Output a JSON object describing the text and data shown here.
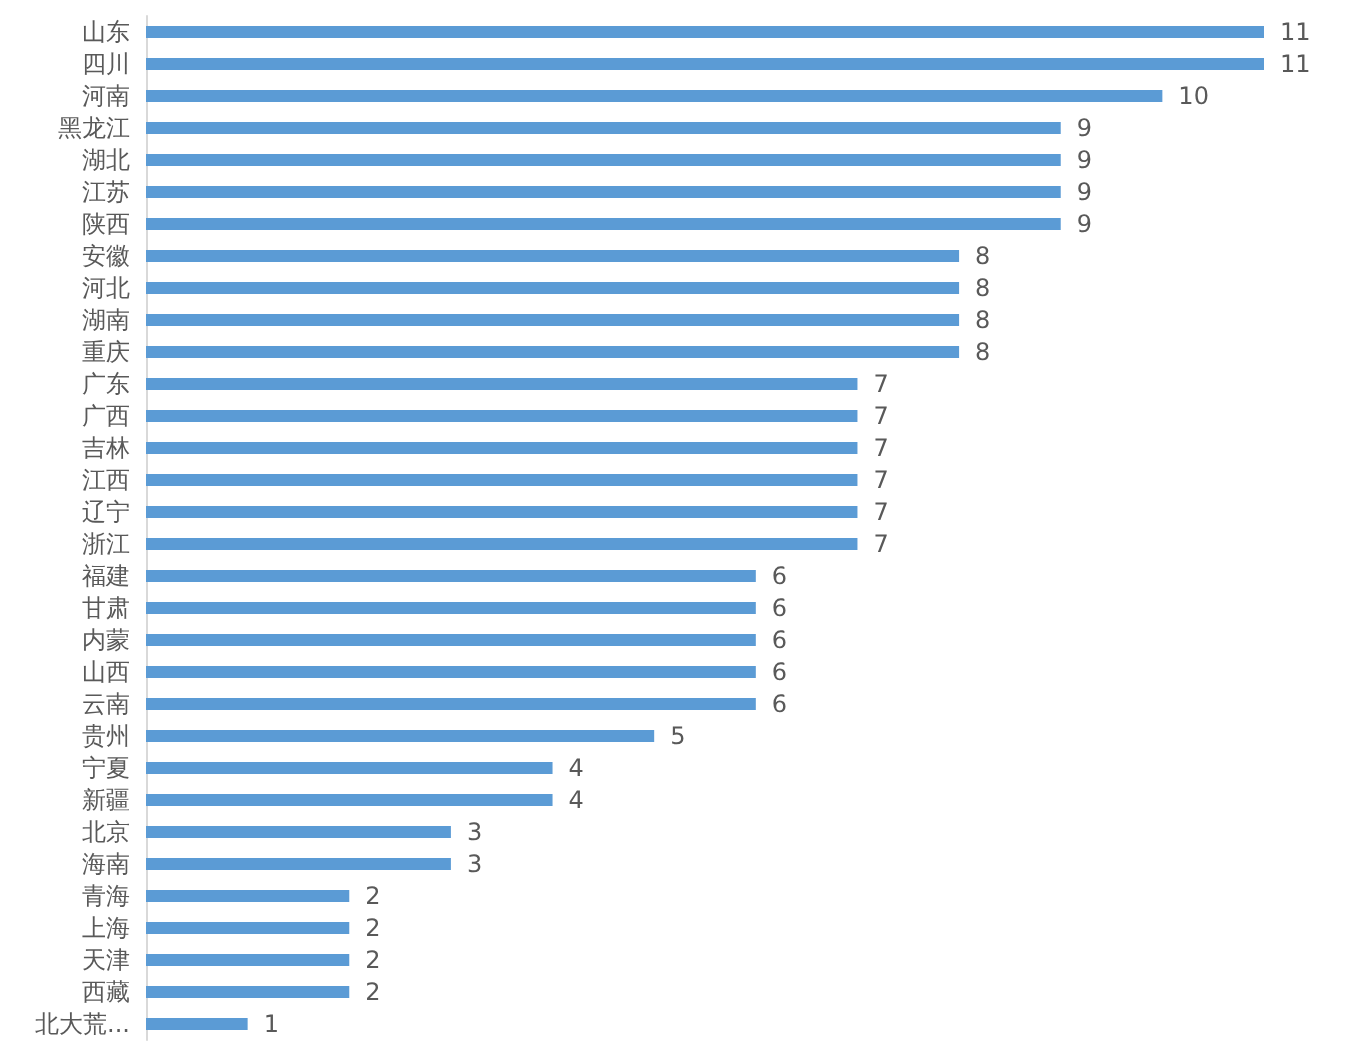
{
  "chart_data": {
    "type": "bar",
    "orientation": "horizontal",
    "categories": [
      "山东",
      "四川",
      "河南",
      "黑龙江",
      "湖北",
      "江苏",
      "陕西",
      "安徽",
      "河北",
      "湖南",
      "重庆",
      "广东",
      "广西",
      "吉林",
      "江西",
      "辽宁",
      "浙江",
      "福建",
      "甘肃",
      "内蒙",
      "山西",
      "云南",
      "贵州",
      "宁夏",
      "新疆",
      "北京",
      "海南",
      "青海",
      "上海",
      "天津",
      "西藏",
      "北大荒..."
    ],
    "values": [
      11,
      11,
      10,
      9,
      9,
      9,
      9,
      8,
      8,
      8,
      8,
      7,
      7,
      7,
      7,
      7,
      7,
      6,
      6,
      6,
      6,
      6,
      5,
      4,
      4,
      3,
      3,
      2,
      2,
      2,
      2,
      1
    ],
    "color": "#5b9bd5",
    "data_labels": true
  }
}
